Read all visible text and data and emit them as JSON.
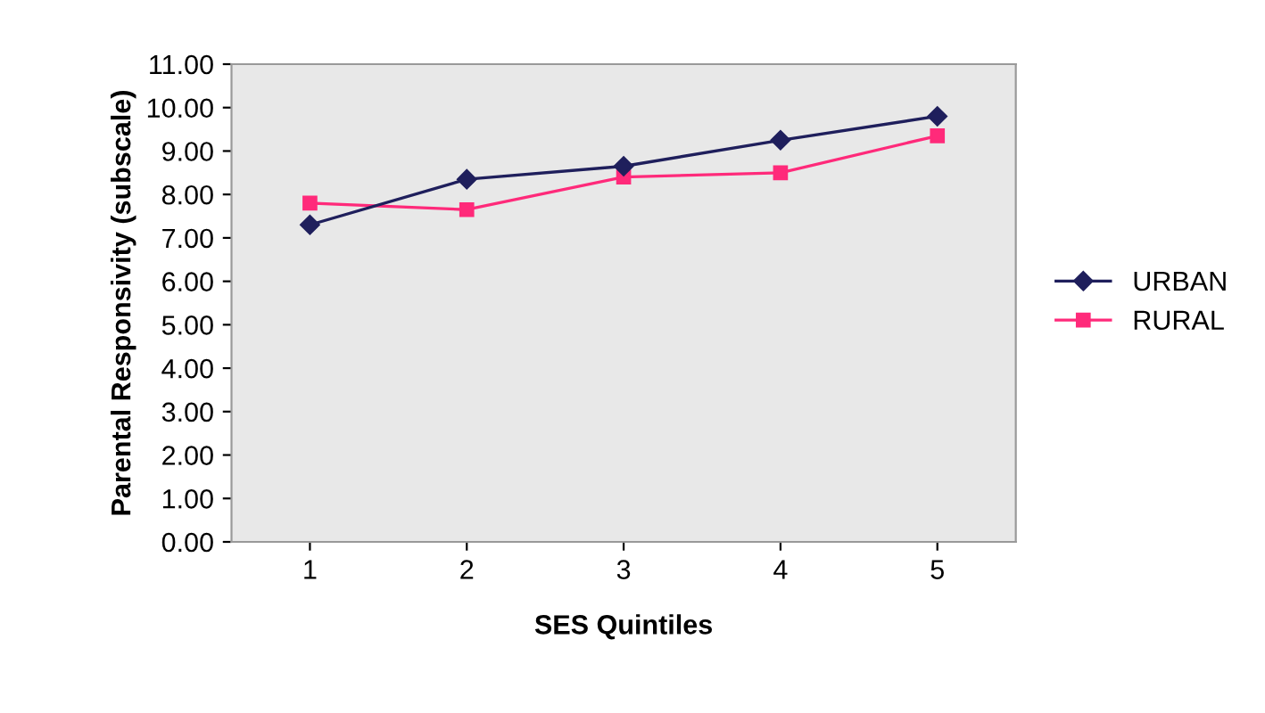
{
  "chart_data": {
    "type": "line",
    "xlabel": "SES Quintiles",
    "ylabel": "Parental Responsivity (subscale)",
    "categories": [
      "1",
      "2",
      "3",
      "4",
      "5"
    ],
    "series": [
      {
        "name": "URBAN",
        "color": "#1f1f5c",
        "marker": "diamond",
        "values": [
          7.3,
          8.35,
          8.65,
          9.25,
          9.8
        ]
      },
      {
        "name": "RURAL",
        "color": "#ff2a7a",
        "marker": "square",
        "values": [
          7.8,
          7.65,
          8.4,
          8.5,
          9.35
        ]
      }
    ],
    "ylim": [
      0,
      11
    ],
    "yticks": [
      {
        "value": 0,
        "label": "0.00"
      },
      {
        "value": 1,
        "label": "1.00"
      },
      {
        "value": 2,
        "label": "2.00"
      },
      {
        "value": 3,
        "label": "3.00"
      },
      {
        "value": 4,
        "label": "4.00"
      },
      {
        "value": 5,
        "label": "5.00"
      },
      {
        "value": 6,
        "label": "6.00"
      },
      {
        "value": 7,
        "label": "7.00"
      },
      {
        "value": 8,
        "label": "8.00"
      },
      {
        "value": 9,
        "label": "9.00"
      },
      {
        "value": 10,
        "label": "10.00"
      },
      {
        "value": 11,
        "label": "11.00"
      }
    ],
    "legend": "right",
    "grid": false
  }
}
